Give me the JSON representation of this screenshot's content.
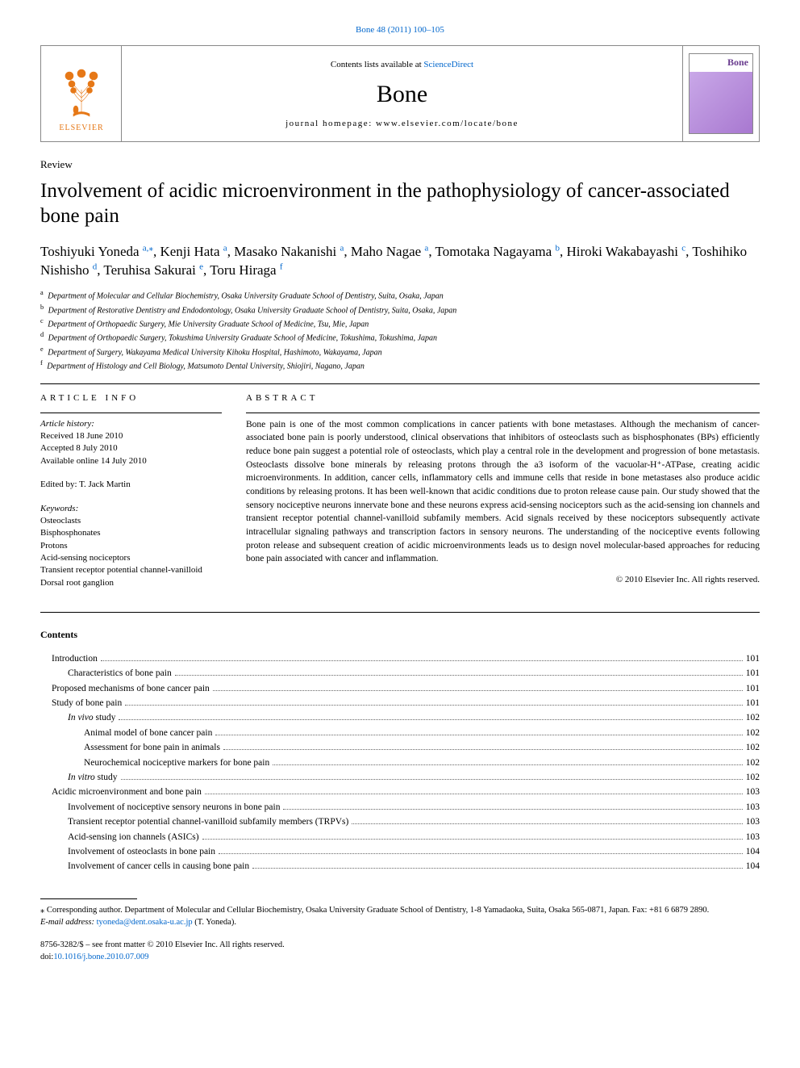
{
  "journal_ref": {
    "pre": "Bone 48 (2011) 100–105",
    "link_text": "Bone 48 (2011) 100–105"
  },
  "header": {
    "contents_pre": "Contents lists available at ",
    "contents_link": "ScienceDirect",
    "journal_name": "Bone",
    "homepage_pre": "journal homepage: ",
    "homepage_url": "www.elsevier.com/locate/bone",
    "cover_label": "Bone"
  },
  "article_type": "Review",
  "title": "Involvement of acidic microenvironment in the pathophysiology of cancer-associated bone pain",
  "authors": [
    {
      "name": "Toshiyuki Yoneda",
      "sup": "a,",
      "star": "⁎"
    },
    {
      "name": "Kenji Hata",
      "sup": "a"
    },
    {
      "name": "Masako Nakanishi",
      "sup": "a"
    },
    {
      "name": "Maho Nagae",
      "sup": "a"
    },
    {
      "name": "Tomotaka Nagayama",
      "sup": "b"
    },
    {
      "name": "Hiroki Wakabayashi",
      "sup": "c"
    },
    {
      "name": "Toshihiko Nishisho",
      "sup": "d"
    },
    {
      "name": "Teruhisa Sakurai",
      "sup": "e"
    },
    {
      "name": "Toru Hiraga",
      "sup": "f"
    }
  ],
  "affiliations": [
    {
      "key": "a",
      "text": "Department of Molecular and Cellular Biochemistry, Osaka University Graduate School of Dentistry, Suita, Osaka, Japan"
    },
    {
      "key": "b",
      "text": "Department of Restorative Dentistry and Endodontology, Osaka University Graduate School of Dentistry, Suita, Osaka, Japan"
    },
    {
      "key": "c",
      "text": "Department of Orthopaedic Surgery, Mie University Graduate School of Medicine, Tsu, Mie, Japan"
    },
    {
      "key": "d",
      "text": "Department of Orthopaedic Surgery, Tokushima University Graduate School of Medicine, Tokushima, Tokushima, Japan"
    },
    {
      "key": "e",
      "text": "Department of Surgery, Wakayama Medical University Kihoku Hospital, Hashimoto, Wakayama, Japan"
    },
    {
      "key": "f",
      "text": "Department of Histology and Cell Biology, Matsumoto Dental University, Shiojiri, Nagano, Japan"
    }
  ],
  "article_info": {
    "heading": "ARTICLE INFO",
    "history_label": "Article history:",
    "received": "Received 18 June 2010",
    "accepted": "Accepted 8 July 2010",
    "online": "Available online 14 July 2010",
    "editor": "Edited by: T. Jack Martin",
    "keywords_label": "Keywords:",
    "keywords": [
      "Osteoclasts",
      "Bisphosphonates",
      "Protons",
      "Acid-sensing nociceptors",
      "Transient receptor potential channel-vanilloid",
      "Dorsal root ganglion"
    ]
  },
  "abstract": {
    "heading": "ABSTRACT",
    "text": "Bone pain is one of the most common complications in cancer patients with bone metastases. Although the mechanism of cancer-associated bone pain is poorly understood, clinical observations that inhibitors of osteoclasts such as bisphosphonates (BPs) efficiently reduce bone pain suggest a potential role of osteoclasts, which play a central role in the development and progression of bone metastasis. Osteoclasts dissolve bone minerals by releasing protons through the a3 isoform of the vacuolar-H⁺-ATPase, creating acidic microenvironments. In addition, cancer cells, inflammatory cells and immune cells that reside in bone metastases also produce acidic conditions by releasing protons. It has been well-known that acidic conditions due to proton release cause pain. Our study showed that the sensory nociceptive neurons innervate bone and these neurons express acid-sensing nociceptors such as the acid-sensing ion channels and transient receptor potential channel-vanilloid subfamily members. Acid signals received by these nociceptors subsequently activate intracellular signaling pathways and transcription factors in sensory neurons. The understanding of the nociceptive events following proton release and subsequent creation of acidic microenvironments leads us to design novel molecular-based approaches for reducing bone pain associated with cancer and inflammation.",
    "copyright": "© 2010 Elsevier Inc. All rights reserved."
  },
  "contents": {
    "heading": "Contents",
    "items": [
      {
        "level": 0,
        "title": "Introduction",
        "page": "101"
      },
      {
        "level": 1,
        "title": "Characteristics of bone pain",
        "page": "101"
      },
      {
        "level": 0,
        "title": "Proposed mechanisms of bone cancer pain",
        "page": "101"
      },
      {
        "level": 0,
        "title": "Study of bone pain",
        "page": "101"
      },
      {
        "level": 1,
        "title": "In vivo study",
        "page": "102"
      },
      {
        "level": 2,
        "title": "Animal model of bone cancer pain",
        "page": "102"
      },
      {
        "level": 2,
        "title": "Assessment for bone pain in animals",
        "page": "102"
      },
      {
        "level": 2,
        "title": "Neurochemical nociceptive markers for bone pain",
        "page": "102"
      },
      {
        "level": 1,
        "title": "In vitro study",
        "page": "102"
      },
      {
        "level": 0,
        "title": "Acidic microenvironment and bone pain",
        "page": "103"
      },
      {
        "level": 1,
        "title": "Involvement of nociceptive sensory neurons in bone pain",
        "page": "103"
      },
      {
        "level": 1,
        "title": "Transient receptor potential channel-vanilloid subfamily members (TRPVs)",
        "page": "103"
      },
      {
        "level": 1,
        "title": "Acid-sensing ion channels (ASICs)",
        "page": "103"
      },
      {
        "level": 1,
        "title": "Involvement of osteoclasts in bone pain",
        "page": "104"
      },
      {
        "level": 1,
        "title": "Involvement of cancer cells in causing bone pain",
        "page": "104"
      }
    ]
  },
  "footnotes": {
    "corr": "⁎ Corresponding author. Department of Molecular and Cellular Biochemistry, Osaka University Graduate School of Dentistry, 1-8 Yamadaoka, Suita, Osaka 565-0871, Japan. Fax: +81 6 6879 2890.",
    "email_label": "E-mail address: ",
    "email": "tyoneda@dent.osaka-u.ac.jp",
    "email_suffix": " (T. Yoneda)."
  },
  "bottom": {
    "issn": "8756-3282/$ – see front matter © 2010 Elsevier Inc. All rights reserved.",
    "doi_pre": "doi:",
    "doi": "10.1016/j.bone.2010.07.009"
  },
  "colors": {
    "link": "#0066cc",
    "rule": "#000000",
    "cover_bg": "#b48ed9",
    "cover_title": "#6a3d8f"
  }
}
